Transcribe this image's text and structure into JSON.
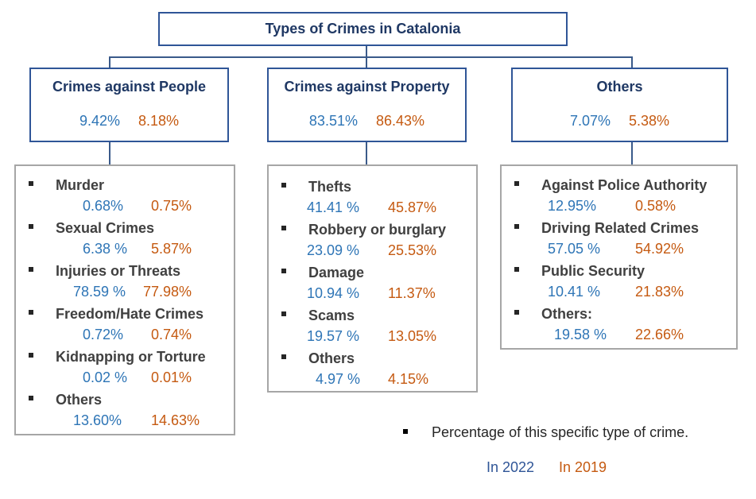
{
  "title": "Types of Crimes in Catalonia",
  "categories": [
    {
      "title": "Crimes against People",
      "pct_2022": "9.42%",
      "pct_2019": "8.18%",
      "items": [
        {
          "label": "Murder",
          "v2022": "0.68%",
          "v2019": "0.75%"
        },
        {
          "label": "Sexual Crimes",
          "v2022": "6.38 %",
          "v2019": "5.87%"
        },
        {
          "label": "Injuries or Threats",
          "v2022": "78.59 %",
          "v2019": "77.98%"
        },
        {
          "label": "Freedom/Hate Crimes",
          "v2022": "0.72%",
          "v2019": "0.74%"
        },
        {
          "label": "Kidnapping or Torture",
          "v2022": "0.02 %",
          "v2019": "0.01%"
        },
        {
          "label": "Others",
          "v2022": "13.60%",
          "v2019": "14.63%"
        }
      ]
    },
    {
      "title": "Crimes against Property",
      "pct_2022": "83.51%",
      "pct_2019": "86.43%",
      "items": [
        {
          "label": "Thefts",
          "v2022": "41.41 %",
          "v2019": "45.87%"
        },
        {
          "label": "Robbery or burglary",
          "v2022": "23.09 %",
          "v2019": "25.53%"
        },
        {
          "label": "Damage",
          "v2022": "10.94 %",
          "v2019": "11.37%"
        },
        {
          "label": "Scams",
          "v2022": "19.57 %",
          "v2019": "13.05%"
        },
        {
          "label": "Others",
          "v2022": "4.97 %",
          "v2019": "4.15%"
        }
      ]
    },
    {
      "title": "Others",
      "pct_2022": "7.07%",
      "pct_2019": "5.38%",
      "items": [
        {
          "label": "Against Police Authority",
          "v2022": "12.95%",
          "v2019": "0.58%"
        },
        {
          "label": "Driving Related Crimes",
          "v2022": "57.05 %",
          "v2019": "54.92%"
        },
        {
          "label": "Public Security",
          "v2022": "10.41 %",
          "v2019": "21.83%"
        },
        {
          "label": "Others:",
          "v2022": "19.58 %",
          "v2019": "22.66%"
        }
      ]
    }
  ],
  "legend": {
    "bullet_text": "Percentage of this specific type of crime.",
    "year_a": "In 2022",
    "year_b": "In 2019"
  },
  "colors": {
    "year_2022": "#2e75b6",
    "year_2019": "#c55a11",
    "box_border": "#2f5597"
  }
}
